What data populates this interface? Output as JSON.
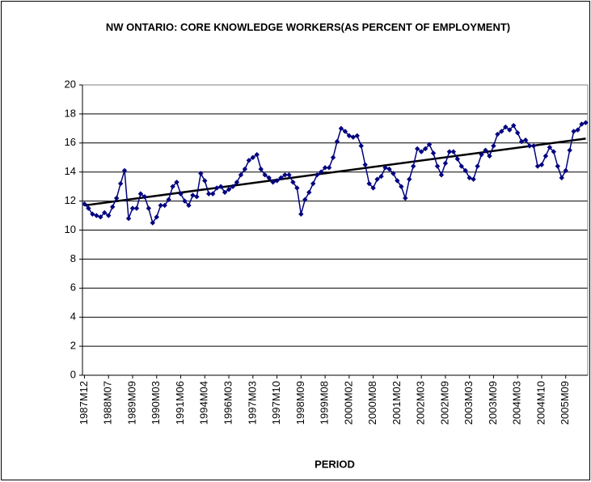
{
  "chart_data": {
    "type": "line",
    "title": "NW ONTARIO: CORE KNOWLEDGE WORKERS(AS PERCENT OF EMPLOYMENT)",
    "x_label": "PERIOD",
    "categories": [
      "1987M12",
      null,
      null,
      null,
      null,
      null,
      "1988M07",
      null,
      null,
      null,
      null,
      null,
      "1989M09",
      null,
      null,
      null,
      null,
      null,
      "1990M03",
      null,
      null,
      null,
      null,
      null,
      "1991M06",
      null,
      null,
      null,
      null,
      null,
      "1994M04",
      null,
      null,
      null,
      null,
      null,
      "1996M03",
      null,
      null,
      null,
      null,
      null,
      "1997M03",
      null,
      null,
      null,
      null,
      null,
      "1997M10",
      null,
      null,
      null,
      null,
      null,
      "1998M09",
      null,
      null,
      null,
      null,
      null,
      "1999M08",
      null,
      null,
      null,
      null,
      null,
      "2000M02",
      null,
      null,
      null,
      null,
      null,
      "2000M08",
      null,
      null,
      null,
      null,
      null,
      "2001M02",
      null,
      null,
      null,
      null,
      null,
      "2002M03",
      null,
      null,
      null,
      null,
      null,
      "2002M09",
      null,
      null,
      null,
      null,
      null,
      "2003M03",
      null,
      null,
      null,
      null,
      null,
      "2003M09",
      null,
      null,
      null,
      null,
      null,
      "2004M03",
      null,
      null,
      null,
      null,
      null,
      "2004M10",
      null,
      null,
      null,
      null,
      null,
      "2005M09",
      null,
      null,
      null,
      null,
      null
    ],
    "series": [
      {
        "color": "#000080",
        "values": [
          11.8,
          11.5,
          11.1,
          11.0,
          10.9,
          11.2,
          11.0,
          11.6,
          12.2,
          13.2,
          14.1,
          10.8,
          11.5,
          11.5,
          12.5,
          12.3,
          11.5,
          10.5,
          10.9,
          11.7,
          11.7,
          12.1,
          13.0,
          13.3,
          12.5,
          12.0,
          11.7,
          12.4,
          12.3,
          13.9,
          13.4,
          12.5,
          12.5,
          12.9,
          13.0,
          12.6,
          12.8,
          13.0,
          13.3,
          13.8,
          14.2,
          14.8,
          15.0,
          15.2,
          14.2,
          13.8,
          13.6,
          13.3,
          13.4,
          13.6,
          13.8,
          13.8,
          13.3,
          12.9,
          11.1,
          12.1,
          12.6,
          13.2,
          13.8,
          14.0,
          14.3,
          14.3,
          15.0,
          16.1,
          17.0,
          16.8,
          16.5,
          16.4,
          16.5,
          15.8,
          14.5,
          13.2,
          12.9,
          13.5,
          13.7,
          14.3,
          14.2,
          13.9,
          13.4,
          13.0,
          12.2,
          13.5,
          14.4,
          15.6,
          15.4,
          15.6,
          15.9,
          15.3,
          14.4,
          13.8,
          14.6,
          15.4,
          15.4,
          14.9,
          14.4,
          14.1,
          13.6,
          13.5,
          14.4,
          15.2,
          15.5,
          15.1,
          15.8,
          16.6,
          16.8,
          17.1,
          16.9,
          17.2,
          16.7,
          16.1,
          16.2,
          15.8,
          15.8,
          14.4,
          14.5,
          15.1,
          15.7,
          15.4,
          14.4,
          13.6,
          14.1,
          15.5,
          16.8,
          16.9,
          17.3,
          17.4
        ]
      }
    ],
    "trendline": {
      "color": "#000000",
      "values": [
        11.7,
        16.3
      ]
    },
    "ylim": [
      0,
      20
    ],
    "yticks": [
      0,
      2,
      4,
      6,
      8,
      10,
      12,
      14,
      16,
      18,
      20
    ],
    "grid": true
  }
}
